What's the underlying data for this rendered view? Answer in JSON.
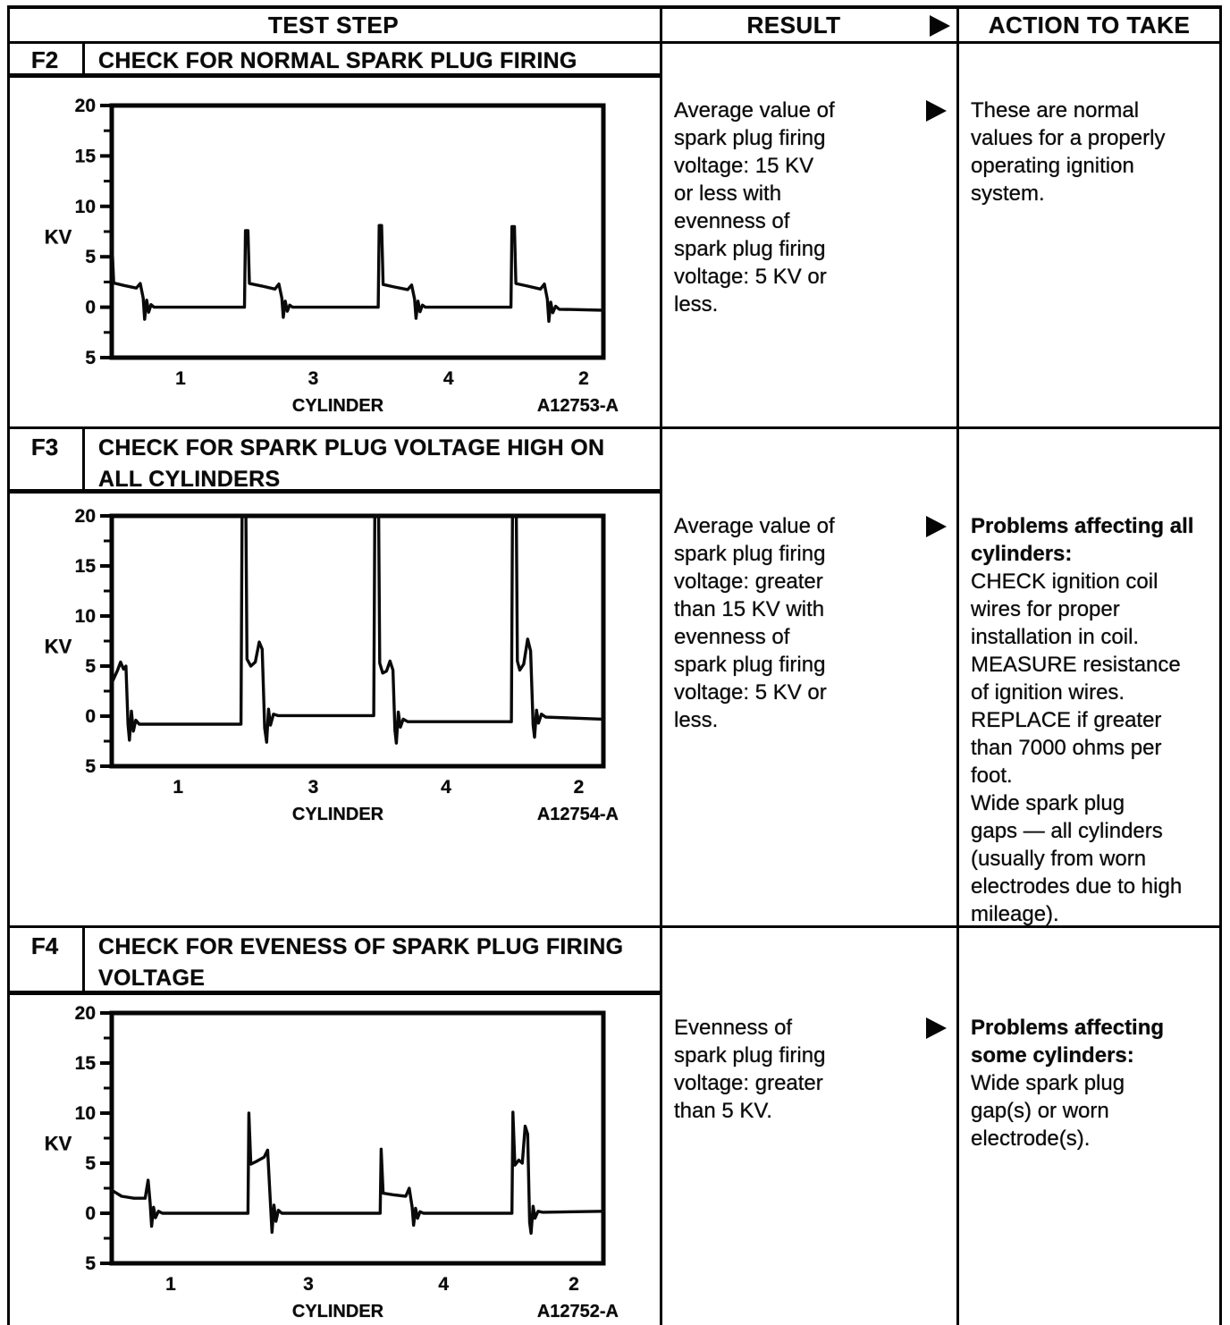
{
  "header": {
    "col_test_step": "TEST STEP",
    "col_result": "RESULT",
    "col_action": "ACTION TO TAKE"
  },
  "sections": [
    {
      "step": "F2",
      "title_lines": [
        "CHECK FOR NORMAL SPARK PLUG FIRING"
      ],
      "result": {
        "lines": [
          "Average value of",
          "spark plug firing",
          "voltage: 15 KV",
          "or less with",
          "evenness of",
          "spark plug firing",
          "voltage: 5 KV or",
          "less."
        ]
      },
      "action": {
        "bold_lines": [],
        "lines": [
          "These are normal",
          "values for a properly",
          "operating ignition",
          "system."
        ]
      }
    },
    {
      "step": "F3",
      "title_lines": [
        "CHECK FOR SPARK PLUG VOLTAGE HIGH ON",
        "ALL CYLINDERS"
      ],
      "result": {
        "lines": [
          "Average value of",
          "spark plug firing",
          "voltage: greater",
          "than 15 KV with",
          "evenness of",
          "spark plug firing",
          "voltage: 5 KV or",
          "less."
        ]
      },
      "action": {
        "bold_lines": [
          "Problems affecting all",
          "cylinders:"
        ],
        "lines": [
          "CHECK ignition coil",
          "wires for proper",
          "installation in coil.",
          "MEASURE resistance",
          "of ignition wires.",
          "REPLACE if greater",
          "than 7000 ohms per",
          "foot.",
          "Wide spark plug",
          "gaps — all cylinders",
          "(usually from worn",
          "electrodes due to high",
          "mileage)."
        ]
      }
    },
    {
      "step": "F4",
      "title_lines": [
        "CHECK FOR EVENESS OF SPARK PLUG FIRING",
        "VOLTAGE"
      ],
      "result": {
        "lines": [
          "Evenness of",
          "spark plug firing",
          "voltage: greater",
          "than 5 KV."
        ]
      },
      "action": {
        "bold_lines": [
          "Problems affecting",
          "some cylinders:"
        ],
        "lines": [
          "Wide spark plug",
          "gap(s) or worn",
          "electrode(s)."
        ]
      }
    }
  ],
  "chart_data": [
    {
      "type": "line",
      "step": "F2",
      "figure_label": "A12753-A",
      "ylabel": "KV",
      "xlabel": "CYLINDER",
      "ylim": [
        -5,
        20
      ],
      "y_major_ticks": [
        20,
        15,
        10,
        5,
        0,
        -5
      ],
      "y_tick_labels": [
        "20",
        "15",
        "10",
        "5",
        "0",
        "5"
      ],
      "y_minor_ticks": [
        17.5,
        12.5,
        7.5,
        2.5,
        -2.5
      ],
      "x_categories": [
        "1",
        "3",
        "4",
        "2"
      ],
      "x_category_pos_pct": [
        14,
        41,
        68.5,
        96
      ],
      "waveform_kv": [
        [
          0,
          6.8
        ],
        [
          0.4,
          2.4
        ],
        [
          2.5,
          2.15
        ],
        [
          5.0,
          1.9
        ],
        [
          5.8,
          2.35
        ],
        [
          6.4,
          0.9
        ],
        [
          6.7,
          -1.2
        ],
        [
          7.1,
          0.7
        ],
        [
          7.5,
          -0.5
        ],
        [
          8.0,
          0.25
        ],
        [
          8.6,
          0
        ],
        [
          27.0,
          0
        ],
        [
          27.2,
          7.6
        ],
        [
          27.7,
          7.6
        ],
        [
          28.0,
          2.35
        ],
        [
          30.5,
          2.1
        ],
        [
          33.2,
          1.8
        ],
        [
          34.0,
          2.3
        ],
        [
          34.6,
          0.9
        ],
        [
          34.9,
          -1.0
        ],
        [
          35.3,
          0.6
        ],
        [
          35.7,
          -0.4
        ],
        [
          36.2,
          0.2
        ],
        [
          36.8,
          0
        ],
        [
          54.2,
          0
        ],
        [
          54.4,
          8.1
        ],
        [
          54.9,
          8.1
        ],
        [
          55.2,
          2.25
        ],
        [
          57.5,
          2.0
        ],
        [
          60.2,
          1.75
        ],
        [
          61.0,
          2.2
        ],
        [
          61.6,
          0.8
        ],
        [
          61.9,
          -1.1
        ],
        [
          62.3,
          0.6
        ],
        [
          62.7,
          -0.45
        ],
        [
          63.2,
          0.2
        ],
        [
          63.8,
          0
        ],
        [
          81.2,
          0
        ],
        [
          81.4,
          8.0
        ],
        [
          81.9,
          8.0
        ],
        [
          82.2,
          2.35
        ],
        [
          84.5,
          2.1
        ],
        [
          87.2,
          1.8
        ],
        [
          88.0,
          2.3
        ],
        [
          88.6,
          0.8
        ],
        [
          88.9,
          -1.4
        ],
        [
          89.3,
          0.5
        ],
        [
          89.7,
          -0.55
        ],
        [
          90.3,
          0.1
        ],
        [
          91.0,
          -0.2
        ],
        [
          100,
          -0.3
        ]
      ]
    },
    {
      "type": "line",
      "step": "F3",
      "figure_label": "A12754-A",
      "ylabel": "KV",
      "xlabel": "CYLINDER",
      "ylim": [
        -5,
        20
      ],
      "y_major_ticks": [
        20,
        15,
        10,
        5,
        0,
        -5
      ],
      "y_tick_labels": [
        "20",
        "15",
        "10",
        "5",
        "0",
        "5"
      ],
      "y_minor_ticks": [
        17.5,
        12.5,
        7.5,
        2.5,
        -2.5
      ],
      "x_categories": [
        "1",
        "3",
        "4",
        "2"
      ],
      "x_category_pos_pct": [
        13.5,
        41,
        68,
        95
      ],
      "waveform_kv": [
        [
          0,
          3.3
        ],
        [
          1.2,
          4.6
        ],
        [
          1.8,
          5.4
        ],
        [
          2.4,
          4.7
        ],
        [
          2.9,
          5.0
        ],
        [
          3.3,
          -0.8
        ],
        [
          3.6,
          -2.4
        ],
        [
          4.0,
          0.5
        ],
        [
          4.4,
          -1.5
        ],
        [
          4.9,
          -0.4
        ],
        [
          5.6,
          -0.8
        ],
        [
          26.3,
          -0.8
        ],
        [
          26.5,
          20
        ],
        [
          27.3,
          20
        ],
        [
          27.5,
          5.7
        ],
        [
          28.3,
          5.0
        ],
        [
          29.2,
          5.4
        ],
        [
          30.0,
          7.4
        ],
        [
          30.6,
          6.7
        ],
        [
          31.1,
          -1.2
        ],
        [
          31.5,
          -2.6
        ],
        [
          31.9,
          0.7
        ],
        [
          32.3,
          -0.9
        ],
        [
          32.9,
          0.2
        ],
        [
          33.8,
          0.05
        ],
        [
          53.3,
          0.05
        ],
        [
          53.5,
          20
        ],
        [
          54.3,
          20
        ],
        [
          54.5,
          5.3
        ],
        [
          55.1,
          4.3
        ],
        [
          55.9,
          4.5
        ],
        [
          56.6,
          5.5
        ],
        [
          57.2,
          4.6
        ],
        [
          57.6,
          -1.4
        ],
        [
          57.9,
          -2.7
        ],
        [
          58.3,
          0.4
        ],
        [
          58.7,
          -1.1
        ],
        [
          59.3,
          -0.3
        ],
        [
          60.2,
          -0.55
        ],
        [
          81.3,
          -0.55
        ],
        [
          81.5,
          20
        ],
        [
          82.3,
          20
        ],
        [
          82.5,
          5.5
        ],
        [
          83.0,
          4.6
        ],
        [
          83.8,
          5.2
        ],
        [
          84.6,
          7.7
        ],
        [
          85.2,
          6.5
        ],
        [
          85.7,
          -0.9
        ],
        [
          86.0,
          -2.1
        ],
        [
          86.4,
          0.6
        ],
        [
          86.8,
          -0.7
        ],
        [
          87.4,
          0.2
        ],
        [
          88.3,
          -0.1
        ],
        [
          100,
          -0.3
        ]
      ]
    },
    {
      "type": "line",
      "step": "F4",
      "figure_label": "A12752-A",
      "ylabel": "KV",
      "xlabel": "CYLINDER",
      "ylim": [
        -5,
        20
      ],
      "y_major_ticks": [
        20,
        15,
        10,
        5,
        0,
        -5
      ],
      "y_tick_labels": [
        "20",
        "15",
        "10",
        "5",
        "0",
        "5"
      ],
      "y_minor_ticks": [
        17.5,
        12.5,
        7.5,
        2.5,
        -2.5
      ],
      "x_categories": [
        "1",
        "3",
        "4",
        "2"
      ],
      "x_category_pos_pct": [
        12,
        40,
        67.5,
        94
      ],
      "waveform_kv": [
        [
          0,
          2.3
        ],
        [
          2.0,
          1.7
        ],
        [
          4.5,
          1.5
        ],
        [
          6.8,
          1.5
        ],
        [
          7.4,
          3.3
        ],
        [
          7.8,
          1.1
        ],
        [
          8.1,
          -1.3
        ],
        [
          8.5,
          0.6
        ],
        [
          8.9,
          -0.45
        ],
        [
          9.5,
          0.2
        ],
        [
          10.3,
          0
        ],
        [
          27.7,
          0
        ],
        [
          27.9,
          10.0
        ],
        [
          28.3,
          4.9
        ],
        [
          29.5,
          5.2
        ],
        [
          31.0,
          5.6
        ],
        [
          31.7,
          6.3
        ],
        [
          32.3,
          0.9
        ],
        [
          32.6,
          -1.9
        ],
        [
          33.0,
          0.8
        ],
        [
          33.4,
          -0.8
        ],
        [
          33.9,
          0.3
        ],
        [
          34.6,
          0
        ],
        [
          54.6,
          0
        ],
        [
          54.8,
          6.4
        ],
        [
          55.2,
          2.0
        ],
        [
          57.2,
          1.85
        ],
        [
          59.8,
          1.7
        ],
        [
          60.5,
          2.5
        ],
        [
          61.1,
          0.6
        ],
        [
          61.4,
          -1.2
        ],
        [
          61.8,
          0.5
        ],
        [
          62.2,
          -0.5
        ],
        [
          62.7,
          0.15
        ],
        [
          63.4,
          0
        ],
        [
          81.4,
          0
        ],
        [
          81.6,
          10.1
        ],
        [
          82.0,
          4.8
        ],
        [
          82.8,
          5.3
        ],
        [
          83.5,
          5.0
        ],
        [
          84.1,
          8.7
        ],
        [
          84.6,
          7.9
        ],
        [
          85.0,
          -0.9
        ],
        [
          85.3,
          -2.0
        ],
        [
          85.7,
          0.7
        ],
        [
          86.1,
          -0.5
        ],
        [
          86.7,
          0.2
        ],
        [
          87.6,
          0.1
        ],
        [
          100,
          0.2
        ]
      ]
    }
  ]
}
